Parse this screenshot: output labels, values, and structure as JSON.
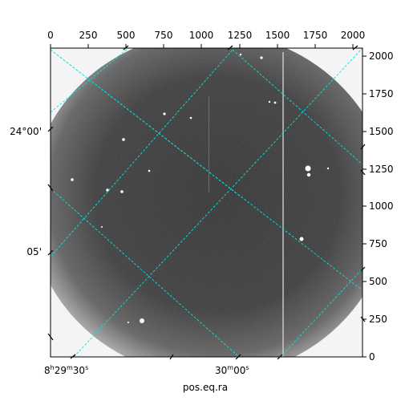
{
  "plot": {
    "xlabel": "pos.eq.ra",
    "pixel_ticks": {
      "top": [
        "0",
        "250",
        "500",
        "750",
        "1000",
        "1250",
        "1500",
        "1750",
        "2000"
      ],
      "right": [
        "0",
        "250",
        "500",
        "750",
        "1000",
        "1250",
        "1500",
        "1750",
        "2000"
      ]
    },
    "ra_labels": [
      {
        "h": "8",
        "m": "29",
        "s": "30",
        "unit_h": "h",
        "unit_m": "m",
        "unit_s": "s"
      },
      {
        "m": "30",
        "s": "00",
        "unit_m": "m",
        "unit_s": "s"
      }
    ],
    "dec_labels": [
      "24°00'",
      "05'"
    ],
    "colors": {
      "grid": "#00e5e5",
      "frame": "#000000",
      "background": "#ffffff"
    }
  }
}
